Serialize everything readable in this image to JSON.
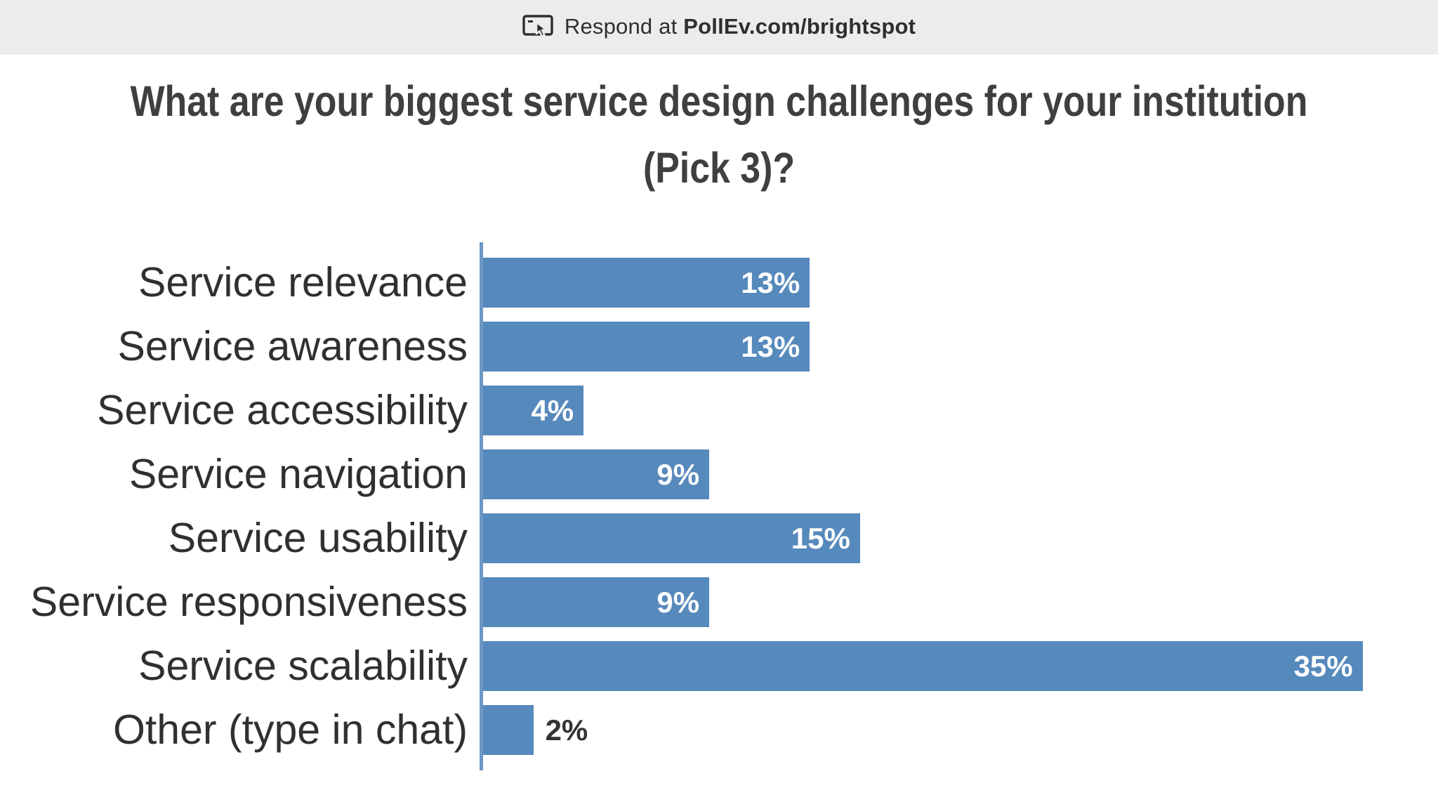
{
  "banner": {
    "respond_prefix": "Respond at ",
    "respond_target": "PollEv.com/brightspot",
    "icon": "respond-cursor-icon"
  },
  "title": {
    "text": "What are your biggest service design challenges for your institution (Pick 3)?",
    "lines": [
      "What are your biggest service design challenges for your institution",
      "(Pick 3)?"
    ]
  },
  "chart_data": {
    "type": "bar",
    "orientation": "horizontal",
    "title": "What are your biggest service design challenges for your institution (Pick 3)?",
    "categories": [
      "Service relevance",
      "Service awareness",
      "Service accessibility",
      "Service navigation",
      "Service usability",
      "Service responsiveness",
      "Service scalability",
      "Other (type in chat)"
    ],
    "values": [
      13,
      13,
      4,
      9,
      15,
      9,
      35,
      2
    ],
    "value_suffix": "%",
    "xlabel": "",
    "ylabel": "",
    "xlim": [
      0,
      38
    ],
    "grid": false,
    "legend": false,
    "bar_color": "#5689bc",
    "axis_line_color": "#6d97c4",
    "value_label_inside_color": "#ffffff",
    "value_label_outside_color": "#333333",
    "category_label_color": "#303030"
  },
  "colors": {
    "banner_bg": "#ececec",
    "page_bg": "#ffffff",
    "title_text": "#3f3f3f"
  }
}
